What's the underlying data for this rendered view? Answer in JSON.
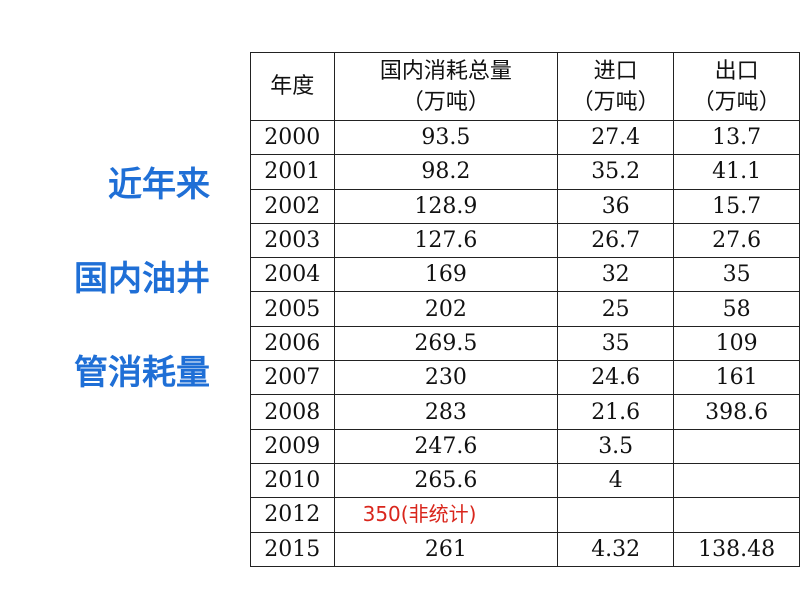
{
  "side_title": [
    "近年来",
    "国内油井",
    "管消耗量"
  ],
  "table": {
    "header": [
      [
        "年度"
      ],
      [
        "国内消耗总量",
        "（万吨）"
      ],
      [
        "进口",
        "（万吨）"
      ],
      [
        "出口",
        "（万吨）"
      ]
    ],
    "rows": [
      [
        "2000",
        "93.5",
        "27.4",
        "13.7"
      ],
      [
        "2001",
        "98.2",
        "35.2",
        "41.1"
      ],
      [
        "2002",
        "128.9",
        "36",
        "15.7"
      ],
      [
        "2003",
        "127.6",
        "26.7",
        "27.6"
      ],
      [
        "2004",
        "169",
        "32",
        "35"
      ],
      [
        "2005",
        "202",
        "25",
        "58"
      ],
      [
        "2006",
        "269.5",
        "35",
        "109"
      ],
      [
        "2007",
        "230",
        "24.6",
        "161"
      ],
      [
        "2008",
        "283",
        "21.6",
        "398.6"
      ],
      [
        "2009",
        "247.6",
        "3.5",
        null
      ],
      [
        "2010",
        "265.6",
        "4",
        null
      ],
      [
        "2012",
        {
          "text": "350(非统计)",
          "color": "#d9261c"
        },
        null,
        null
      ],
      [
        "2015",
        "261",
        "4.32",
        "138.48"
      ]
    ]
  }
}
